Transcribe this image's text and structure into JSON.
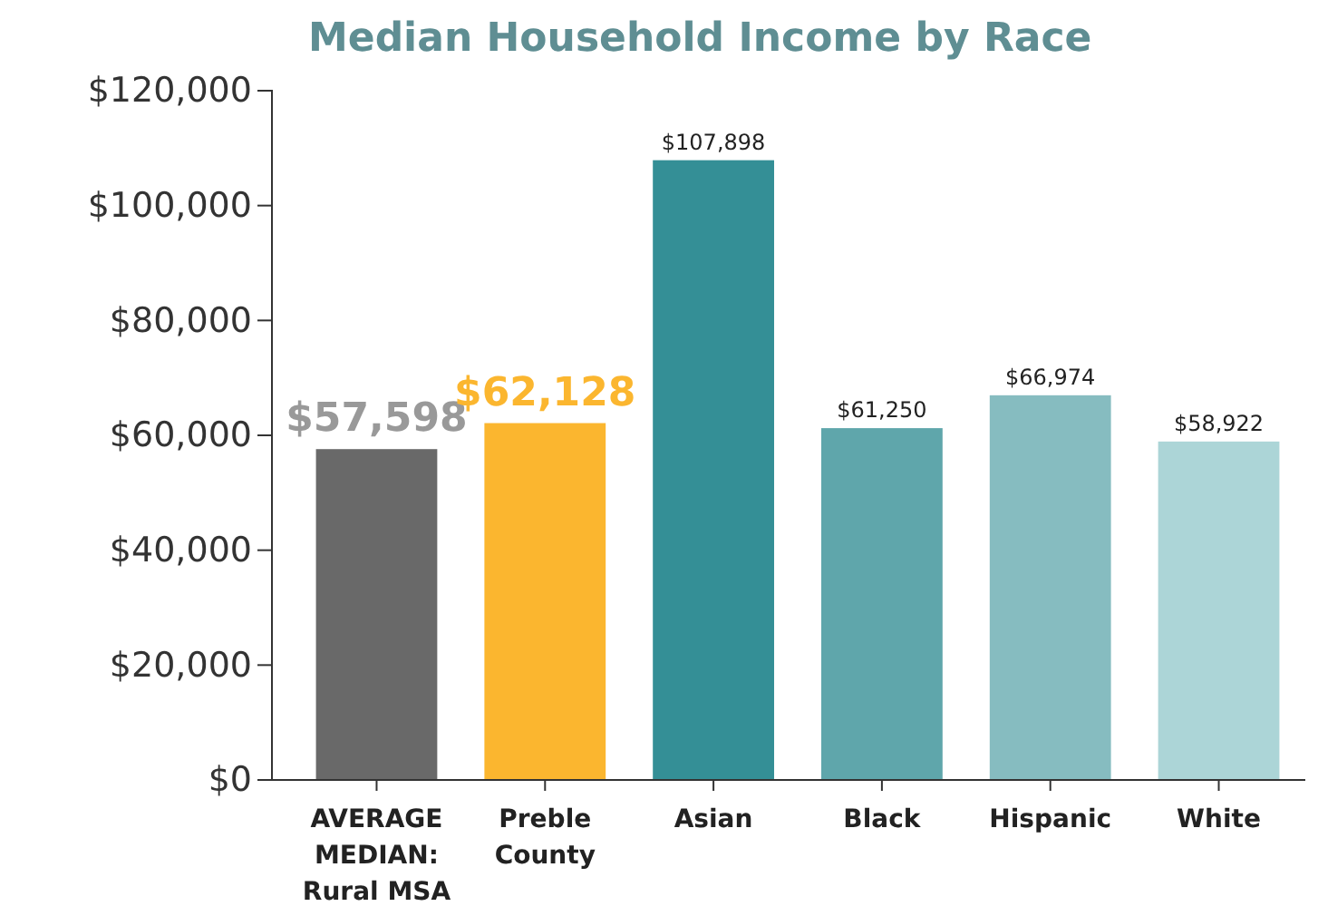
{
  "chart_data": {
    "type": "bar",
    "title": "Median Household Income by Race",
    "categories": [
      "AVERAGE MEDIAN: Rural MSA",
      "Preble County",
      "Asian",
      "Black",
      "Hispanic",
      "White"
    ],
    "values": [
      57598,
      62128,
      107898,
      61250,
      66974,
      58922
    ],
    "colors": [
      "#696969",
      "#fbb62f",
      "#348f96",
      "#5fa6ab",
      "#86bcc0",
      "#acd5d7"
    ],
    "value_labels": [
      "$57,598",
      "$62,128",
      "$107,898",
      "$61,250",
      "$66,974",
      "$58,922"
    ],
    "ylim": [
      0,
      120000
    ],
    "yticks": [
      {
        "value": 0,
        "label": "$0"
      },
      {
        "value": 20000,
        "label": "$20,000"
      },
      {
        "value": 40000,
        "label": "$40,000"
      },
      {
        "value": 60000,
        "label": "$60,000"
      },
      {
        "value": 80000,
        "label": "$80,000"
      },
      {
        "value": 100000,
        "label": "$100,000"
      },
      {
        "value": 120000,
        "label": "$120,000"
      }
    ],
    "grid": false
  }
}
